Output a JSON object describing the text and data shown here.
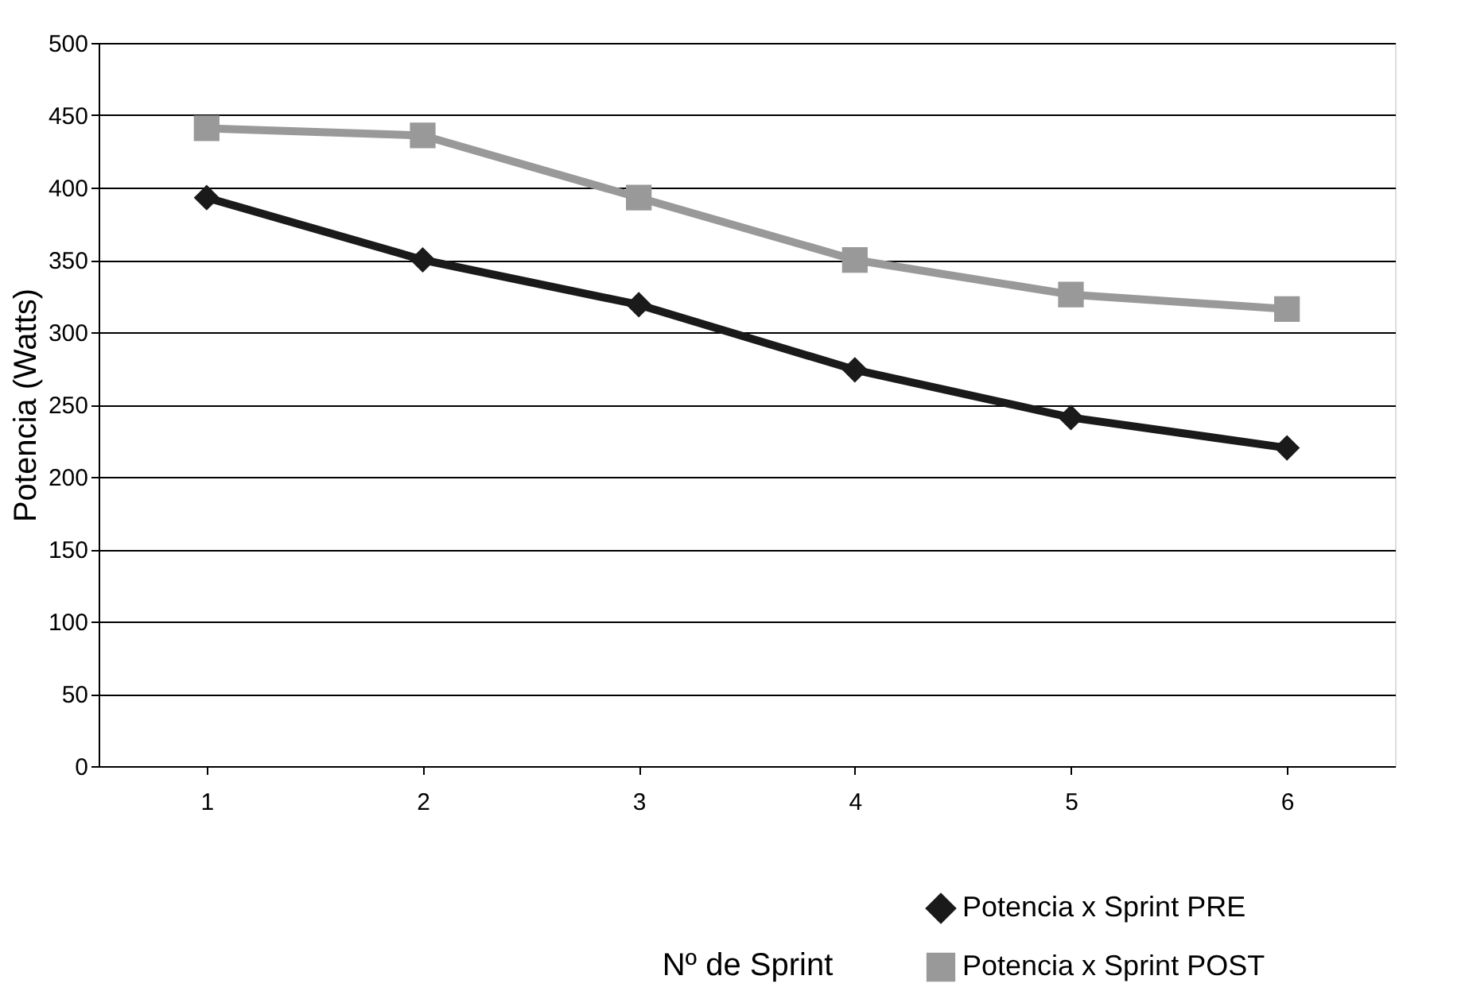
{
  "chart_data": {
    "type": "line",
    "xlabel": "Nº de Sprint",
    "ylabel": "Potencia (Watts)",
    "categories": [
      "1",
      "2",
      "3",
      "4",
      "5",
      "6"
    ],
    "series": [
      {
        "name": "Potencia x Sprint PRE",
        "color": "#1a1a1a",
        "marker": "diamond",
        "values": [
          393,
          350,
          319,
          274,
          241,
          220
        ]
      },
      {
        "name": "Potencia x Sprint POST",
        "color": "#999999",
        "marker": "square",
        "values": [
          441,
          436,
          393,
          350,
          326,
          316
        ]
      }
    ],
    "ylim": [
      0,
      500
    ],
    "yticks": [
      0,
      50,
      100,
      150,
      200,
      250,
      300,
      350,
      400,
      450,
      500
    ],
    "grid": "y",
    "legend": "bottom right",
    "line_style": "solid"
  }
}
